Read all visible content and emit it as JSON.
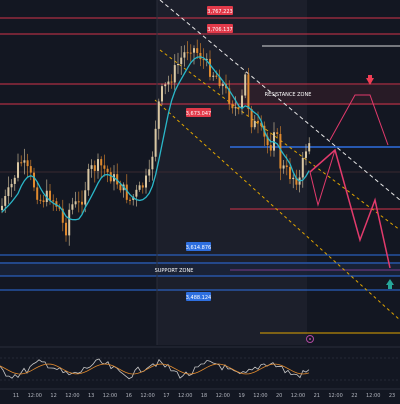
{
  "price_tags": {
    "top": "3,767.223",
    "second": "3,706.137",
    "mid": "3,673.047",
    "low_a": "3,614.876",
    "low_b": "3,488.124"
  },
  "zones": {
    "resistance": "RESISTANCE ZONE",
    "support": "SUPPORT ZONE"
  },
  "time_axis": {
    "labels": [
      "11",
      "12:00",
      "12",
      "12:00",
      "13",
      "12:00",
      "16",
      "12:00",
      "17",
      "12:00",
      "18",
      "12:00",
      "19",
      "12:00",
      "20",
      "12:00",
      "21",
      "12:00",
      "22",
      "12:00",
      "23"
    ]
  },
  "colors": {
    "background": "#131722",
    "bull": "#d9c7a3",
    "bear": "#e08a2e",
    "ma": "#2ab7c9",
    "resistance_line": "#d0334a",
    "support_line": "#2e6fe0",
    "projection": "#e23a6c",
    "trend_white": "#e6e6e6",
    "trend_orange": "#e0a500",
    "arrow_down": "#f03e55",
    "arrow_up": "#26a69a",
    "oscillator": "#c9c9c9",
    "oscillator_signal": "#e08a2e"
  },
  "icons": {
    "sell_arrow": "arrow-down-icon",
    "buy_arrow": "arrow-up-icon",
    "event_marker": "alert-circle-icon"
  }
}
